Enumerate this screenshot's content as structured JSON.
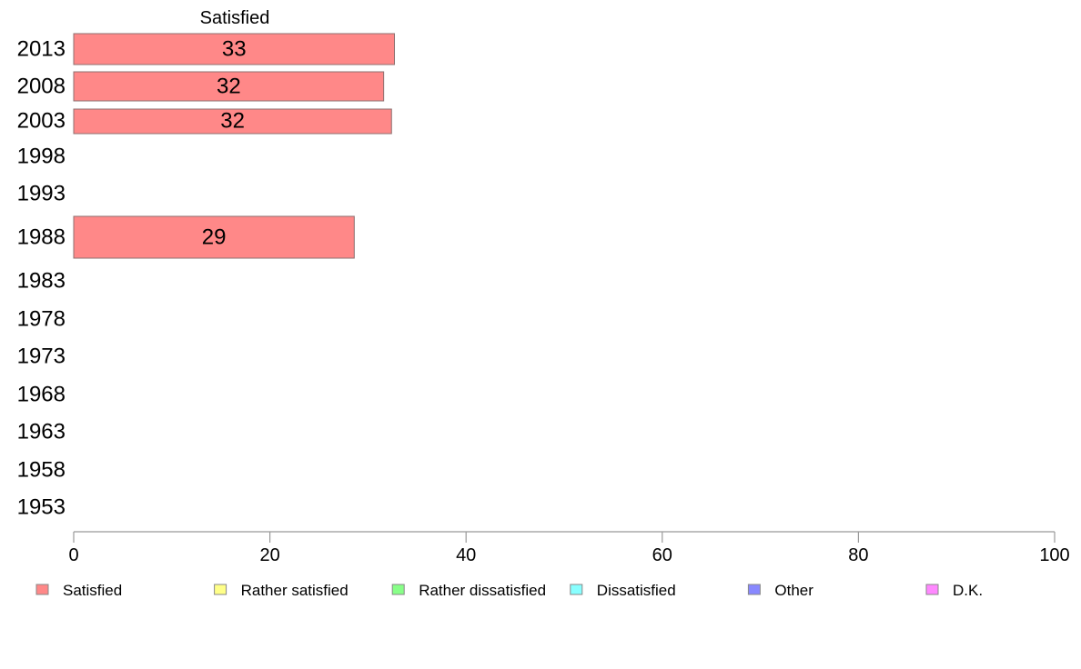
{
  "chart_data": {
    "type": "bar",
    "orientation": "horizontal",
    "stacked": true,
    "column_label": "Satisfied",
    "categories": [
      "2013",
      "2008",
      "2003",
      "1998",
      "1993",
      "1988",
      "1983",
      "1978",
      "1973",
      "1968",
      "1963",
      "1958",
      "1953"
    ],
    "series": [
      {
        "name": "Satisfied",
        "color": "#ff8888",
        "values": [
          33,
          32,
          32,
          null,
          null,
          29,
          null,
          null,
          null,
          null,
          null,
          null,
          null
        ]
      },
      {
        "name": "Rather satisfied",
        "color": "#ffff88",
        "values": [
          null,
          null,
          null,
          null,
          null,
          null,
          null,
          null,
          null,
          null,
          null,
          null,
          null
        ]
      },
      {
        "name": "Rather dissatisfied",
        "color": "#88ff88",
        "values": [
          null,
          null,
          null,
          null,
          null,
          null,
          null,
          null,
          null,
          null,
          null,
          null,
          null
        ]
      },
      {
        "name": "Dissatisfied",
        "color": "#88ffff",
        "values": [
          null,
          null,
          null,
          null,
          null,
          null,
          null,
          null,
          null,
          null,
          null,
          null,
          null
        ]
      },
      {
        "name": "Other",
        "color": "#8888ff",
        "values": [
          null,
          null,
          null,
          null,
          null,
          null,
          null,
          null,
          null,
          null,
          null,
          null,
          null
        ]
      },
      {
        "name": "D.K.",
        "color": "#ff88ff",
        "values": [
          null,
          null,
          null,
          null,
          null,
          null,
          null,
          null,
          null,
          null,
          null,
          null,
          null
        ]
      }
    ],
    "value_labels": [
      "33",
      "32",
      "32",
      "",
      "",
      "29",
      "",
      "",
      "",
      "",
      "",
      "",
      ""
    ],
    "exact_values": [
      32.7,
      31.6,
      32.4,
      null,
      null,
      28.6,
      null,
      null,
      null,
      null,
      null,
      null,
      null
    ],
    "xlim": [
      0,
      100
    ],
    "xticks": [
      0,
      20,
      40,
      60,
      80,
      100
    ],
    "grid": false,
    "legend_position": "bottom"
  }
}
